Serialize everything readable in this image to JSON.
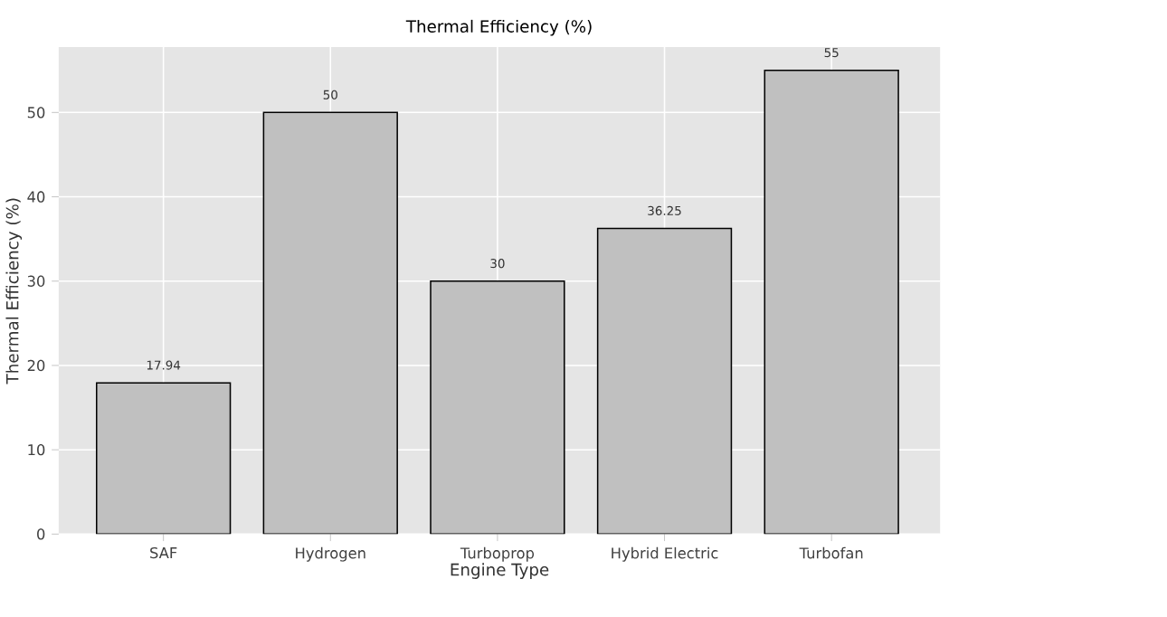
{
  "chart_data": {
    "type": "bar",
    "title": "Thermal Efficiency (%)",
    "xlabel": "Engine Type",
    "ylabel": "Thermal Efficiency (%)",
    "categories": [
      "SAF",
      "Hydrogen",
      "Turboprop",
      "Hybrid Electric",
      "Turbofan"
    ],
    "values": [
      17.94,
      50,
      30,
      36.25,
      55
    ],
    "color": "#c0c0c0",
    "ylim": [
      0,
      57.75
    ],
    "yticks": [
      0,
      10,
      20,
      30,
      40,
      50
    ],
    "grid": true,
    "data_labels": true
  }
}
